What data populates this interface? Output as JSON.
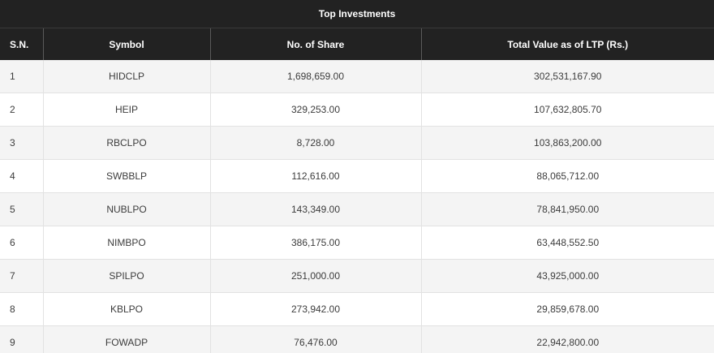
{
  "table": {
    "title": "Top Investments",
    "columns": [
      "S.N.",
      "Symbol",
      "No. of Share",
      "Total Value as of LTP (Rs.)"
    ],
    "rows": [
      [
        "1",
        "HIDCLP",
        "1,698,659.00",
        "302,531,167.90"
      ],
      [
        "2",
        "HEIP",
        "329,253.00",
        "107,632,805.70"
      ],
      [
        "3",
        "RBCLPO",
        "8,728.00",
        "103,863,200.00"
      ],
      [
        "4",
        "SWBBLP",
        "112,616.00",
        "88,065,712.00"
      ],
      [
        "5",
        "NUBLPO",
        "143,349.00",
        "78,841,950.00"
      ],
      [
        "6",
        "NIMBPO",
        "386,175.00",
        "63,448,552.50"
      ],
      [
        "7",
        "SPILPO",
        "251,000.00",
        "43,925,000.00"
      ],
      [
        "8",
        "KBLPO",
        "273,942.00",
        "29,859,678.00"
      ],
      [
        "9",
        "FOWADP",
        "76,476.00",
        "22,942,800.00"
      ]
    ]
  },
  "colors": {
    "header_bg": "#222222",
    "header_text": "#ffffff",
    "row_alt_bg": "#f4f4f4",
    "row_bg": "#ffffff",
    "body_text": "#3c3c3c"
  }
}
